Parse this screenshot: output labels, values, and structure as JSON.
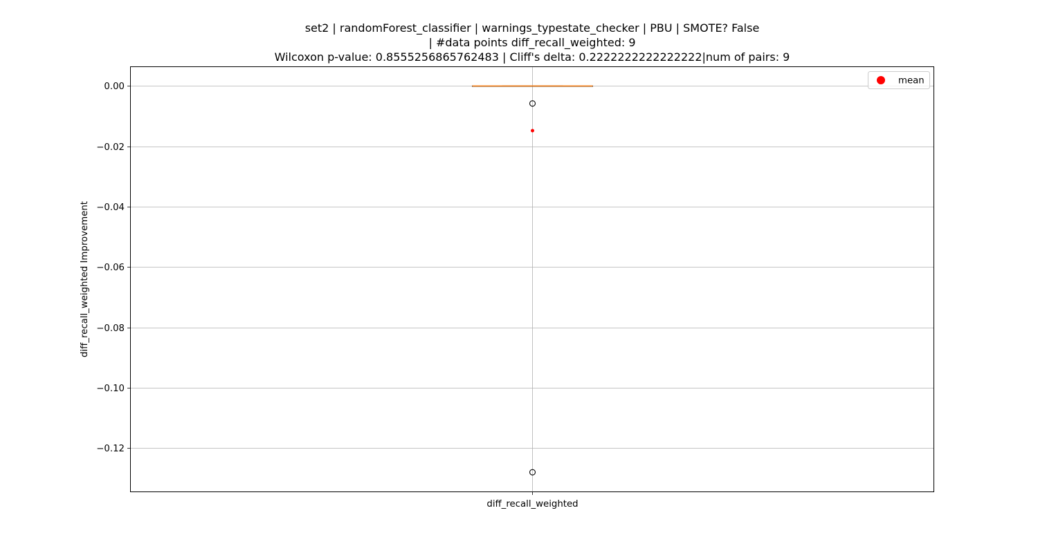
{
  "chart_data": {
    "type": "box",
    "title_lines": [
      "set2 | randomForest_classifier | warnings_typestate_checker | PBU | SMOTE? False",
      "| #data points diff_recall_weighted: 9",
      "Wilcoxon p-value: 0.8555256865762483 | Cliff's delta: 0.2222222222222222|num of pairs: 9"
    ],
    "xlabel": "",
    "ylabel": "diff_recall_weighted Improvement",
    "categories": [
      "diff_recall_weighted"
    ],
    "ylim": [
      -0.1346,
      0.0065
    ],
    "yticks": [
      0.0,
      -0.02,
      -0.04,
      -0.06,
      -0.08,
      -0.1,
      -0.12
    ],
    "ytick_labels": [
      "0.00",
      "−0.02",
      "−0.04",
      "−0.06",
      "−0.08",
      "−0.10",
      "−0.12"
    ],
    "grid": true,
    "box": {
      "q1": 0.0,
      "median": 0.0,
      "q3": 0.0,
      "whisker_low": 0.0,
      "whisker_high": 0.0,
      "outliers": [
        -0.0058,
        -0.128
      ],
      "mean": -0.0148
    },
    "legend": {
      "placement": "top-right",
      "entries": [
        {
          "name": "mean",
          "color": "#ff0000"
        }
      ]
    },
    "colors": {
      "median": "#ff7f0e",
      "mean": "#ff0000",
      "grid": "#b0b0b0",
      "box": "#000000"
    }
  }
}
